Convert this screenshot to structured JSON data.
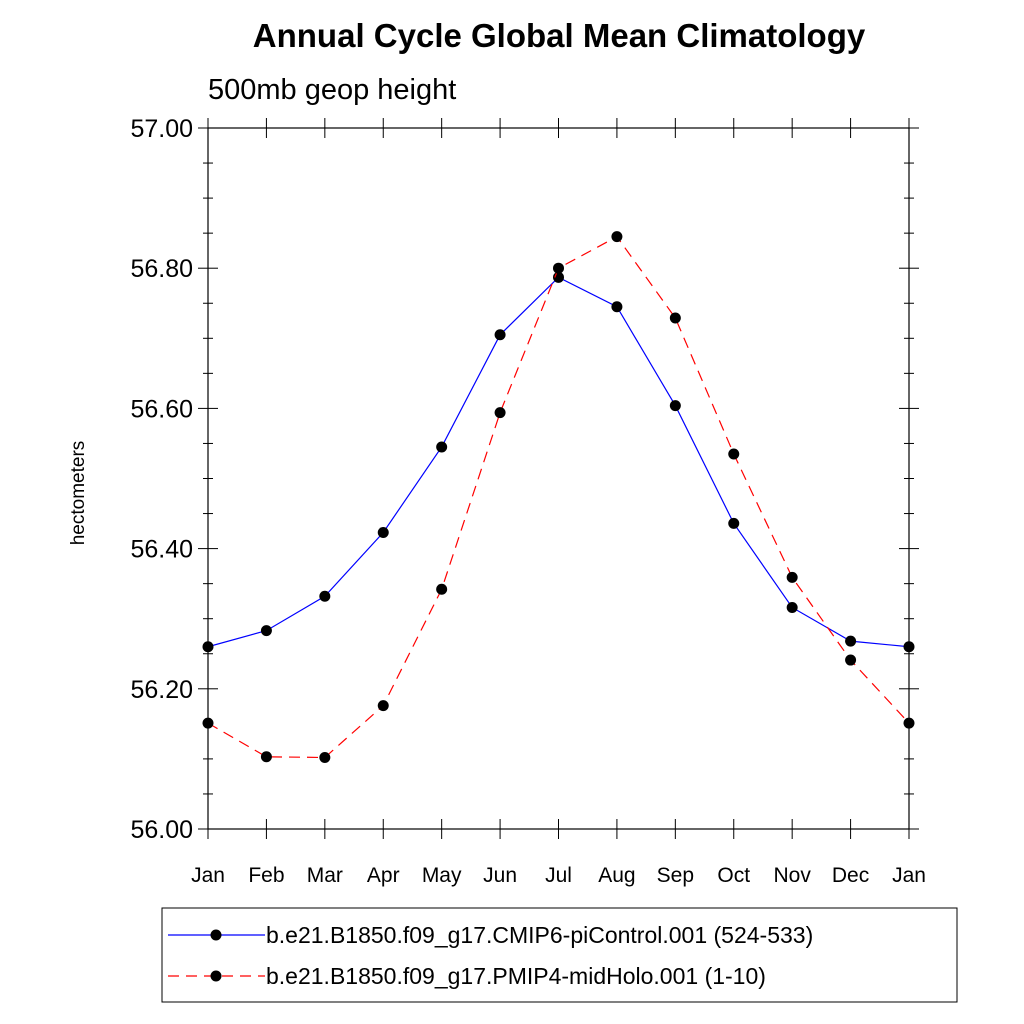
{
  "chart_data": {
    "type": "line",
    "title": "Annual Cycle Global Mean Climatology",
    "subtitle": "500mb geop height",
    "ylabel": "hectometers",
    "xlabel": "",
    "categories": [
      "Jan",
      "Feb",
      "Mar",
      "Apr",
      "May",
      "Jun",
      "Jul",
      "Aug",
      "Sep",
      "Oct",
      "Nov",
      "Dec",
      "Jan"
    ],
    "ylim": [
      56.0,
      57.0
    ],
    "yticks": [
      "56.00",
      "56.20",
      "56.40",
      "56.60",
      "56.80",
      "57.00"
    ],
    "legend_position": "bottom",
    "series": [
      {
        "name": "b.e21.B1850.f09_g17.CMIP6-piControl.001 (524-533)",
        "color": "#0000ff",
        "line_style": "solid",
        "marker": "filled-circle",
        "values": [
          56.26,
          56.283,
          56.332,
          56.423,
          56.545,
          56.705,
          56.787,
          56.745,
          56.604,
          56.436,
          56.316,
          56.268,
          56.26
        ]
      },
      {
        "name": "b.e21.B1850.f09_g17.PMIP4-midHolo.001 (1-10)",
        "color": "#ff0000",
        "line_style": "dashed",
        "marker": "filled-circle",
        "values": [
          56.151,
          56.103,
          56.102,
          56.176,
          56.342,
          56.594,
          56.8,
          56.845,
          56.729,
          56.535,
          56.359,
          56.241,
          56.151
        ]
      }
    ]
  }
}
